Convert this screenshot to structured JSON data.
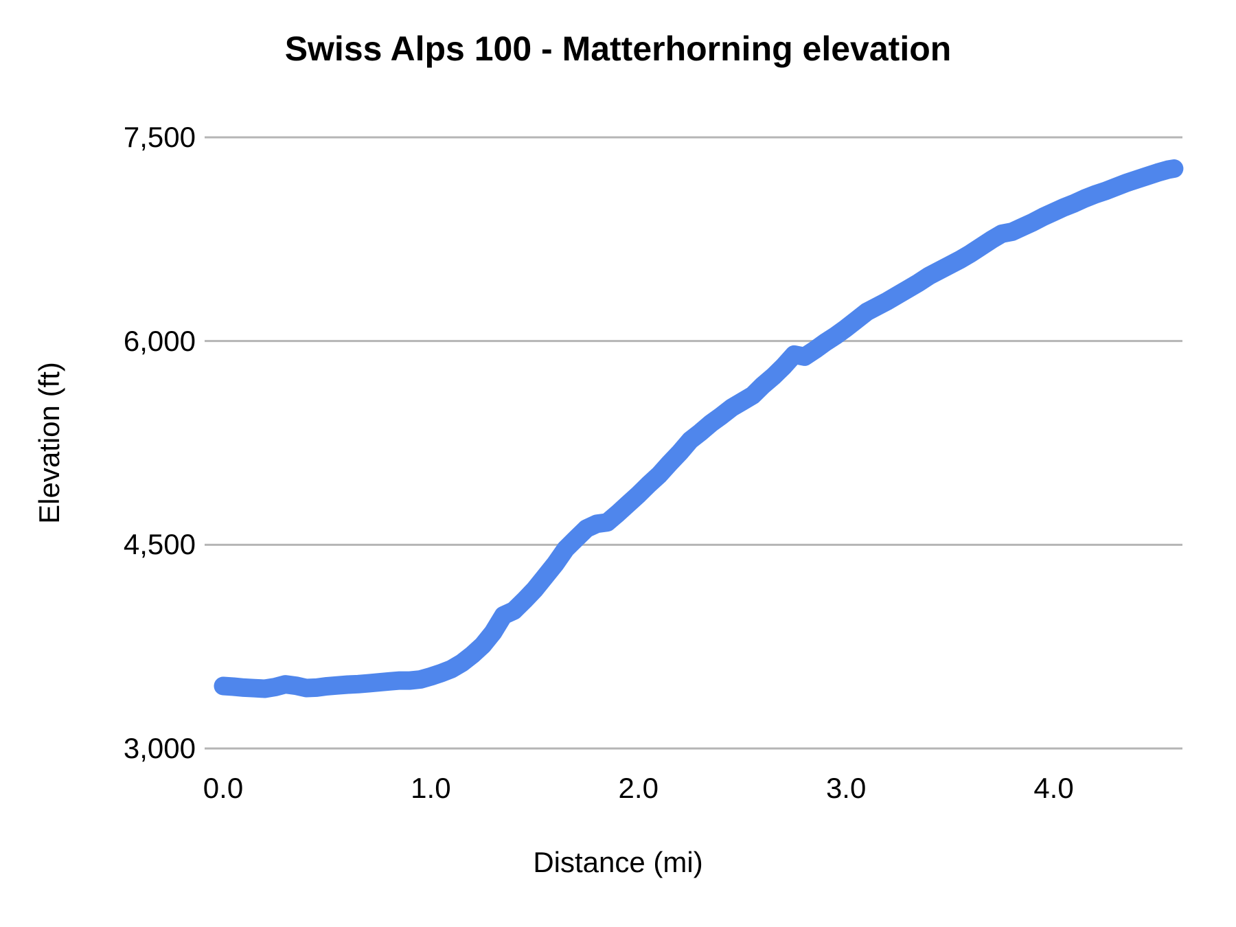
{
  "title": "Swiss Alps 100 - Matterhorning elevation",
  "colors": {
    "line": "#4f86ec",
    "grid": "#b5b5b5",
    "text": "#000000",
    "background": "#ffffff"
  },
  "chart_data": {
    "type": "line",
    "title": "Swiss Alps 100 - Matterhorning elevation",
    "xlabel": "Distance (mi)",
    "ylabel": "Elevation (ft)",
    "xlim": [
      0,
      4.62
    ],
    "ylim": [
      3000,
      7500
    ],
    "grid": "horizontal",
    "legend": "none",
    "xticks": {
      "values": [
        0.0,
        1.0,
        2.0,
        3.0,
        4.0
      ],
      "labels": [
        "0.0",
        "1.0",
        "2.0",
        "3.0",
        "4.0"
      ]
    },
    "yticks": {
      "values": [
        3000,
        4500,
        6000,
        7500
      ],
      "labels": [
        "3,000",
        "4,500",
        "6,000",
        "7,500"
      ]
    },
    "series": [
      {
        "name": "Elevation",
        "color": "#4f86ec",
        "stroke_width": 27,
        "x": [
          0.0,
          0.05,
          0.1,
          0.15,
          0.2,
          0.25,
          0.3,
          0.35,
          0.4,
          0.45,
          0.5,
          0.55,
          0.6,
          0.65,
          0.7,
          0.75,
          0.8,
          0.85,
          0.9,
          0.95,
          1.0,
          1.05,
          1.1,
          1.15,
          1.2,
          1.25,
          1.3,
          1.35,
          1.4,
          1.45,
          1.5,
          1.55,
          1.6,
          1.65,
          1.7,
          1.75,
          1.8,
          1.85,
          1.9,
          1.95,
          2.0,
          2.05,
          2.1,
          2.15,
          2.2,
          2.25,
          2.3,
          2.35,
          2.4,
          2.45,
          2.5,
          2.55,
          2.6,
          2.65,
          2.7,
          2.75,
          2.8,
          2.85,
          2.9,
          2.95,
          3.0,
          3.05,
          3.1,
          3.15,
          3.2,
          3.25,
          3.3,
          3.35,
          3.4,
          3.45,
          3.5,
          3.55,
          3.6,
          3.65,
          3.7,
          3.75,
          3.8,
          3.85,
          3.9,
          3.95,
          4.0,
          4.05,
          4.1,
          4.15,
          4.2,
          4.25,
          4.3,
          4.35,
          4.4,
          4.45,
          4.5,
          4.55,
          4.58
        ],
        "y": [
          3460,
          3455,
          3448,
          3444,
          3440,
          3452,
          3472,
          3462,
          3445,
          3448,
          3458,
          3464,
          3470,
          3474,
          3480,
          3487,
          3494,
          3500,
          3500,
          3508,
          3530,
          3555,
          3585,
          3630,
          3690,
          3760,
          3855,
          3980,
          4015,
          4090,
          4170,
          4265,
          4360,
          4470,
          4545,
          4620,
          4655,
          4665,
          4730,
          4800,
          4870,
          4945,
          5015,
          5100,
          5180,
          5270,
          5330,
          5395,
          5450,
          5510,
          5555,
          5600,
          5675,
          5740,
          5815,
          5900,
          5885,
          5935,
          5990,
          6040,
          6095,
          6155,
          6215,
          6255,
          6295,
          6340,
          6385,
          6430,
          6480,
          6520,
          6560,
          6600,
          6645,
          6695,
          6745,
          6790,
          6805,
          6840,
          6875,
          6915,
          6950,
          6985,
          7015,
          7050,
          7080,
          7105,
          7135,
          7165,
          7190,
          7215,
          7240,
          7262,
          7270
        ]
      }
    ]
  }
}
